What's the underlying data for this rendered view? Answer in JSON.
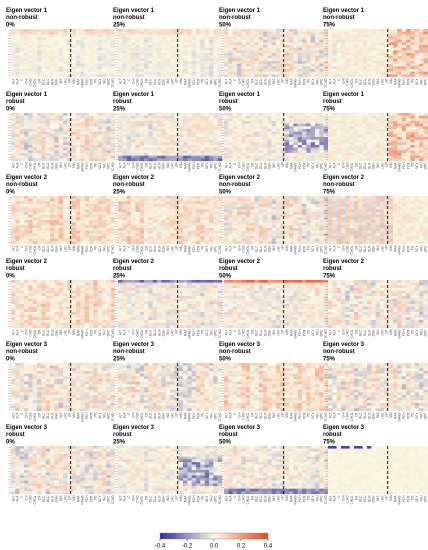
{
  "chart_data": {
    "type": "heatmap",
    "layout": {
      "rows": 6,
      "cols": 4
    },
    "panels": [
      {
        "title": [
          "Eigen vector 1",
          "non-robust",
          "0%"
        ],
        "vector": 1,
        "robust": false,
        "pct": 0,
        "style": "pale"
      },
      {
        "title": [
          "Eigen vector 1",
          "non-robust",
          "25%"
        ],
        "vector": 1,
        "robust": false,
        "pct": 25,
        "style": "pale"
      },
      {
        "title": [
          "Eigen vector 1",
          "non-robust",
          "50%"
        ],
        "vector": 1,
        "robust": false,
        "pct": 50,
        "style": "mixed"
      },
      {
        "title": [
          "Eigen vector 1",
          "non-robust",
          "75%"
        ],
        "vector": 1,
        "robust": false,
        "pct": 75,
        "style": "right-red"
      },
      {
        "title": [
          "Eigen vector 1",
          "robust",
          "0%"
        ],
        "vector": 1,
        "robust": true,
        "pct": 0,
        "style": "mixed"
      },
      {
        "title": [
          "Eigen vector 1",
          "robust",
          "25%"
        ],
        "vector": 1,
        "robust": true,
        "pct": 25,
        "style": "bottom-blue"
      },
      {
        "title": [
          "Eigen vector 1",
          "robust",
          "50%"
        ],
        "vector": 1,
        "robust": true,
        "pct": 50,
        "style": "right-blue"
      },
      {
        "title": [
          "Eigen vector 1",
          "robust",
          "75%"
        ],
        "vector": 1,
        "robust": true,
        "pct": 75,
        "style": "right-red"
      },
      {
        "title": [
          "Eigen vector 2",
          "non-robust",
          "0%"
        ],
        "vector": 2,
        "robust": false,
        "pct": 0,
        "style": "warm"
      },
      {
        "title": [
          "Eigen vector 2",
          "non-robust",
          "25%"
        ],
        "vector": 2,
        "robust": false,
        "pct": 25,
        "style": "warm"
      },
      {
        "title": [
          "Eigen vector 2",
          "non-robust",
          "50%"
        ],
        "vector": 2,
        "robust": false,
        "pct": 50,
        "style": "mixed"
      },
      {
        "title": [
          "Eigen vector 2",
          "non-robust",
          "75%"
        ],
        "vector": 2,
        "robust": false,
        "pct": 75,
        "style": "stripes"
      },
      {
        "title": [
          "Eigen vector 2",
          "robust",
          "0%"
        ],
        "vector": 2,
        "robust": true,
        "pct": 0,
        "style": "warm"
      },
      {
        "title": [
          "Eigen vector 2",
          "robust",
          "25%"
        ],
        "vector": 2,
        "robust": true,
        "pct": 25,
        "style": "top-blue"
      },
      {
        "title": [
          "Eigen vector 2",
          "robust",
          "50%"
        ],
        "vector": 2,
        "robust": true,
        "pct": 50,
        "style": "top-red"
      },
      {
        "title": [
          "Eigen vector 2",
          "robust",
          "75%"
        ],
        "vector": 2,
        "robust": true,
        "pct": 75,
        "style": "mixed"
      },
      {
        "title": [
          "Eigen vector 3",
          "non-robust",
          "0%"
        ],
        "vector": 3,
        "robust": false,
        "pct": 0,
        "style": "mixed"
      },
      {
        "title": [
          "Eigen vector 3",
          "non-robust",
          "25%"
        ],
        "vector": 3,
        "robust": false,
        "pct": 25,
        "style": "mixed"
      },
      {
        "title": [
          "Eigen vector 3",
          "non-robust",
          "50%"
        ],
        "vector": 3,
        "robust": false,
        "pct": 50,
        "style": "warm"
      },
      {
        "title": [
          "Eigen vector 3",
          "non-robust",
          "75%"
        ],
        "vector": 3,
        "robust": false,
        "pct": 75,
        "style": "mixed"
      },
      {
        "title": [
          "Eigen vector 3",
          "robust",
          "0%"
        ],
        "vector": 3,
        "robust": true,
        "pct": 0,
        "style": "mixed"
      },
      {
        "title": [
          "Eigen vector 3",
          "robust",
          "25%"
        ],
        "vector": 3,
        "robust": true,
        "pct": 25,
        "style": "right-blue"
      },
      {
        "title": [
          "Eigen vector 3",
          "robust",
          "50%"
        ],
        "vector": 3,
        "robust": true,
        "pct": 50,
        "style": "bottom-blue"
      },
      {
        "title": [
          "Eigen vector 3",
          "robust",
          "75%"
        ],
        "vector": 3,
        "robust": true,
        "pct": 75,
        "style": "blank-top-blue"
      }
    ],
    "x_labels": [
      "ALT",
      "ALA",
      "C",
      "CHI",
      "CHO",
      "CHOL",
      "CR",
      "GLC",
      "GLU",
      "GLN",
      "GSH",
      "INS",
      "LAC",
      "LIP",
      "MM",
      "NAA",
      "NAAG",
      "PCH",
      "PCR",
      "PE",
      "SCY",
      "TAU",
      "GPC",
      "TCHO"
    ],
    "color_scale": {
      "min": -0.4,
      "max": 0.4,
      "low_color": "#2b2a9b",
      "mid_color": "#fbf8e4",
      "high_color": "#e8431c",
      "ticks": [
        -0.4,
        -0.2,
        0.0,
        0.2,
        0.4
      ],
      "tick_labels": [
        "-0.4",
        "-0.2",
        "0.0",
        "0.2",
        "0.4"
      ]
    }
  }
}
